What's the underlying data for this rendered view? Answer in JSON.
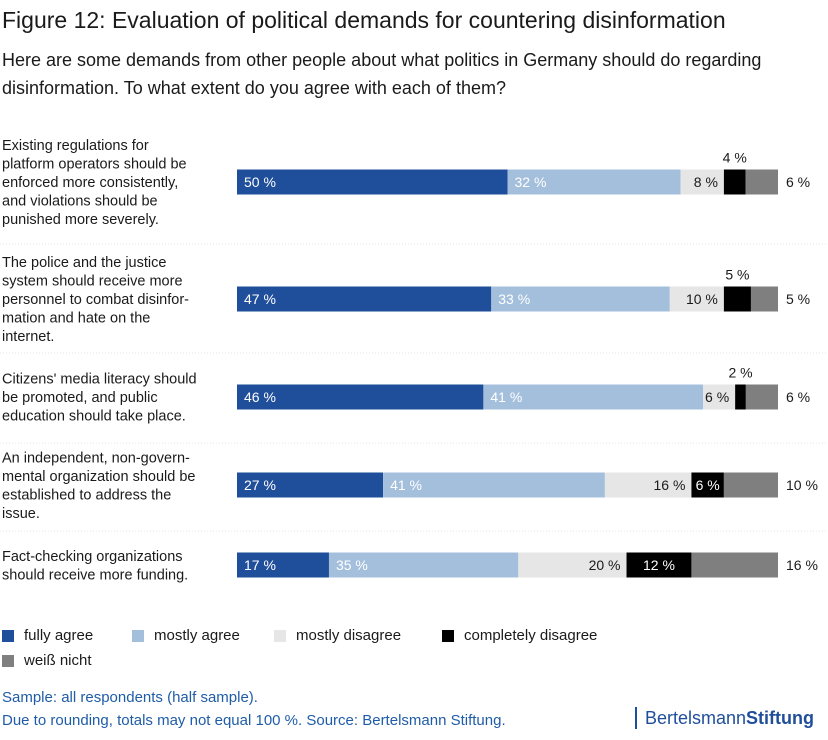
{
  "title": "Figure 12: Evaluation of political demands for countering disinformation",
  "subtitle": "Here are some demands from other people about what politics in Germany should do regarding disinformation. To what extent do you agree with each of them?",
  "chart_data": {
    "type": "bar",
    "orientation": "horizontal-stacked",
    "unit": "%",
    "categories": [
      "Existing regulations for platform operators should be enforced more consistently, and violations should be punished more severely.",
      "The police and the justice system should receive more personnel to combat disinfor-mation and hate on the internet.",
      "Citizens' media literacy should be promoted, and public education should take place.",
      "An independent, non-govern-mental organization should be established to address the issue.",
      "Fact-checking organizations should receive more funding."
    ],
    "category_lines": [
      [
        "Existing regulations for",
        "platform operators should be",
        "enforced more consistently,",
        "and violations should be",
        "punished more severely."
      ],
      [
        "The police and the justice",
        "system should receive more",
        "personnel to combat disinfor-",
        "mation and hate on the",
        "internet."
      ],
      [
        "Citizens' media literacy should",
        "be promoted, and public",
        "education should take place."
      ],
      [
        "An independent, non-govern-",
        "mental organization should be",
        "established to address the",
        "issue."
      ],
      [
        "Fact-checking organizations",
        "should receive more funding."
      ]
    ],
    "series": [
      {
        "name": "fully agree",
        "color": "#1f4e9a",
        "values": [
          50,
          47,
          46,
          27,
          17
        ]
      },
      {
        "name": "mostly agree",
        "color": "#a3bfdc",
        "values": [
          32,
          33,
          41,
          41,
          35
        ]
      },
      {
        "name": "mostly disagree",
        "color": "#e6e6e6",
        "values": [
          8,
          10,
          6,
          16,
          20
        ]
      },
      {
        "name": "completely disagree",
        "color": "#000000",
        "values": [
          4,
          5,
          2,
          6,
          12
        ]
      },
      {
        "name": "weiß nicht",
        "color": "#7f7f7f",
        "values": [
          6,
          5,
          6,
          10,
          16
        ]
      }
    ],
    "xlim": [
      0,
      100
    ],
    "legend_position": "bottom"
  },
  "footer": {
    "sample": "Sample: all respondents (half sample).",
    "note": "Due to rounding, totals may not equal 100 %. Source: Bertelsmann Stiftung."
  },
  "brand": {
    "part1": "Bertelsmann",
    "part2": "Stiftung"
  }
}
